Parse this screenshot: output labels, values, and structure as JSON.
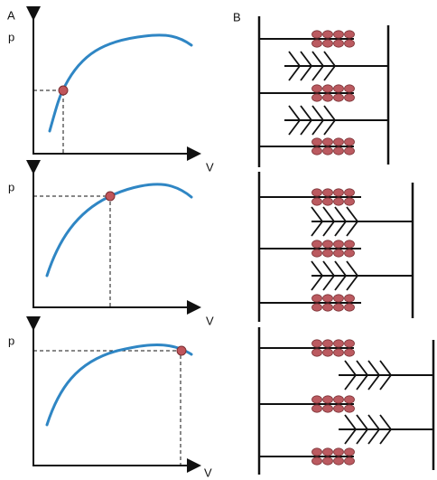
{
  "panel_a": {
    "label": "A",
    "plots": [
      {
        "y_label": "p",
        "x_label": "V"
      },
      {
        "y_label": "p",
        "x_label": "V"
      },
      {
        "y_label": "p",
        "x_label": "V"
      }
    ]
  },
  "panel_b": {
    "label": "B"
  }
}
